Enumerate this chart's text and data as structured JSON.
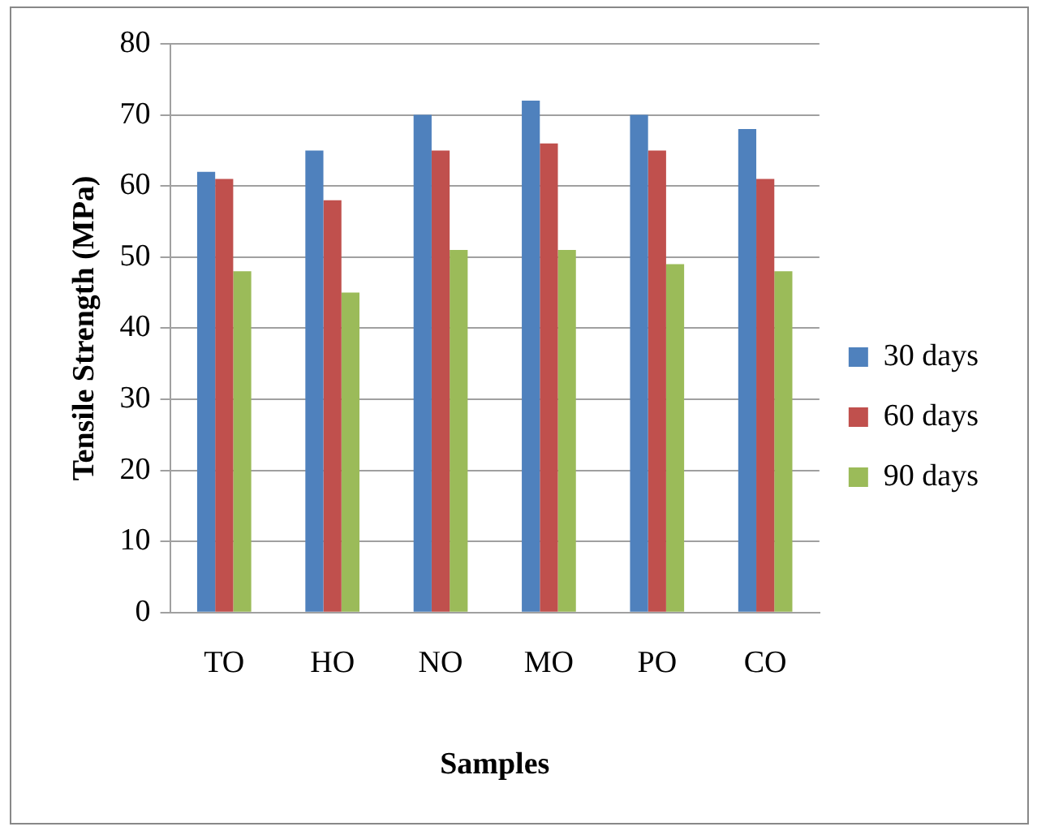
{
  "chart_data": {
    "type": "bar",
    "xlabel": "Samples",
    "ylabel": "Tensile Strength (MPa)",
    "categories": [
      "TO",
      "HO",
      "NO",
      "MO",
      "PO",
      "CO"
    ],
    "series": [
      {
        "name": "30 days",
        "color": "#4f81bd",
        "values": [
          62,
          65,
          70,
          72,
          70,
          68
        ]
      },
      {
        "name": "60 days",
        "color": "#c0504d",
        "values": [
          61,
          58,
          65,
          66,
          65,
          61
        ]
      },
      {
        "name": "90 days",
        "color": "#9bbb59",
        "values": [
          48,
          45,
          51,
          51,
          49,
          48
        ]
      }
    ],
    "ylim": [
      0,
      80
    ],
    "yticks": [
      0,
      10,
      20,
      30,
      40,
      50,
      60,
      70,
      80
    ],
    "grid": "y",
    "legend": "right"
  }
}
